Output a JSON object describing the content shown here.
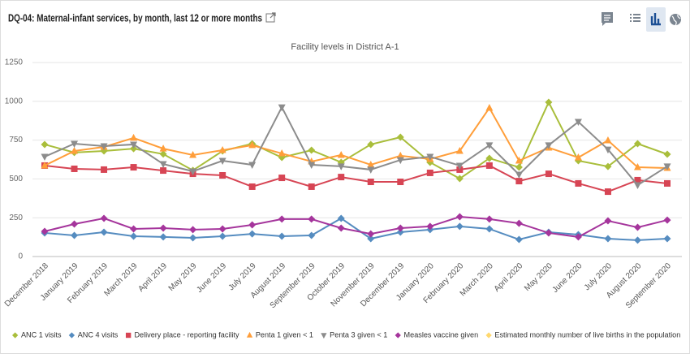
{
  "header": {
    "title": "DQ-04: Maternal-infant services, by month, last 12 or more months"
  },
  "chart_data": {
    "type": "line",
    "subtitle": "Facility levels in District A-1",
    "categories": [
      "December 2018",
      "January 2019",
      "February 2019",
      "March 2019",
      "April 2019",
      "May 2019",
      "June 2019",
      "July 2019",
      "August 2019",
      "September 2019",
      "October 2019",
      "November 2019",
      "December 2019",
      "January 2020",
      "February 2020",
      "March 2020",
      "April 2020",
      "May 2020",
      "June 2020",
      "July 2020",
      "August 2020",
      "September 2020"
    ],
    "ylim": [
      0,
      1250
    ],
    "yticks": [
      0,
      250,
      500,
      750,
      1000,
      1250
    ],
    "grid": true,
    "legend": "bottom",
    "series": [
      {
        "name": "ANC 1 visits",
        "color": "#a9be3b",
        "marker": "diamond",
        "values": [
          722,
          670,
          680,
          695,
          660,
          555,
          680,
          727,
          638,
          685,
          607,
          722,
          769,
          607,
          502,
          633,
          575,
          994,
          617,
          580,
          727,
          659
        ]
      },
      {
        "name": "ANC 4 visits",
        "color": "#558cc0",
        "marker": "diamond",
        "values": [
          152,
          136,
          157,
          131,
          126,
          120,
          131,
          146,
          131,
          136,
          246,
          115,
          157,
          173,
          194,
          178,
          110,
          157,
          141,
          115,
          105,
          115
        ]
      },
      {
        "name": "Delivery place - reporting facility",
        "color": "#d74554",
        "marker": "square",
        "values": [
          586,
          565,
          560,
          575,
          554,
          533,
          523,
          450,
          507,
          450,
          512,
          481,
          481,
          539,
          560,
          586,
          486,
          533,
          471,
          418,
          492,
          471
        ]
      },
      {
        "name": "Penta 1 given < 1",
        "color": "#ff9e3a",
        "marker": "triangle",
        "values": [
          586,
          680,
          706,
          764,
          695,
          654,
          685,
          717,
          664,
          612,
          654,
          591,
          649,
          628,
          680,
          957,
          617,
          701,
          638,
          748,
          575,
          570
        ]
      },
      {
        "name": "Penta 3 given < 1",
        "color": "#8c8c8c",
        "marker": "triangle-down",
        "values": [
          643,
          727,
          711,
          722,
          596,
          549,
          617,
          591,
          962,
          591,
          581,
          560,
          622,
          643,
          586,
          717,
          528,
          717,
          868,
          690,
          460,
          581
        ]
      },
      {
        "name": "Measles vaccine given",
        "color": "#a5359c",
        "marker": "diamond",
        "values": [
          162,
          209,
          246,
          178,
          183,
          173,
          178,
          204,
          241,
          241,
          183,
          146,
          183,
          194,
          256,
          241,
          214,
          152,
          126,
          230,
          188,
          235
        ]
      },
      {
        "name": "Estimated monthly number of live births in the population",
        "color": "#ffd86e",
        "marker": "diamond",
        "values": [
          null,
          null,
          null,
          null,
          null,
          null,
          null,
          null,
          null,
          null,
          null,
          null,
          null,
          null,
          null,
          null,
          null,
          null,
          null,
          null,
          null,
          null
        ]
      }
    ]
  }
}
